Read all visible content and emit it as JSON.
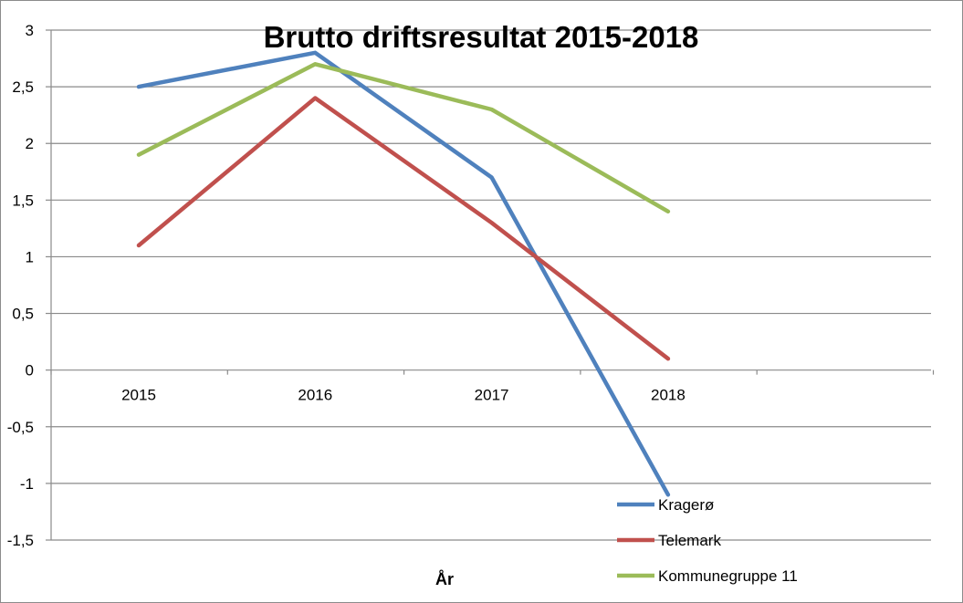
{
  "chart_data": {
    "type": "line",
    "title": "Brutto driftsresultat 2015-2018",
    "xlabel": "År",
    "ylabel": "",
    "categories": [
      "2015",
      "2016",
      "2017",
      "2018"
    ],
    "ylim": [
      -1.5,
      3
    ],
    "yticks": [
      3,
      2.5,
      2,
      1.5,
      1,
      0.5,
      0,
      -0.5,
      -1,
      -1.5
    ],
    "ytick_labels": [
      "3",
      "2,5",
      "2",
      "1,5",
      "1",
      "0,5",
      "0",
      "-0,5",
      "-1",
      "-1,5"
    ],
    "grid": true,
    "legend_position": "bottom-right",
    "series": [
      {
        "name": "Kragerø",
        "color": "#4f81bd",
        "values": [
          2.5,
          2.8,
          1.7,
          -1.1
        ]
      },
      {
        "name": "Telemark",
        "color": "#c0504d",
        "values": [
          1.1,
          2.4,
          1.3,
          0.1
        ]
      },
      {
        "name": "Kommunegruppe 11",
        "color": "#9bbb59",
        "values": [
          1.9,
          2.7,
          2.3,
          1.4
        ]
      }
    ]
  }
}
